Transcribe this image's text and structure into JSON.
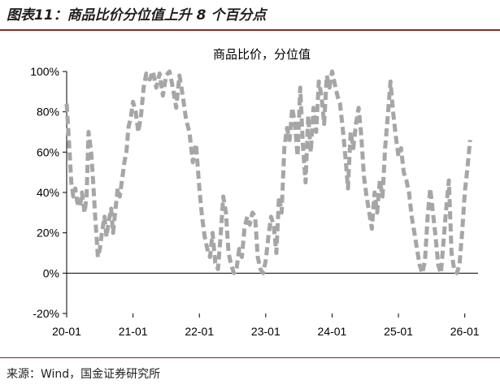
{
  "figure": {
    "title": "图表11：商品比价分位值上升 8 个百分点",
    "source": "来源：Wind，国金证券研究所"
  },
  "chart_data": {
    "type": "line",
    "title": "商品比价，分位值",
    "xlabel": "",
    "ylabel": "",
    "x_tick_labels": [
      "20-01",
      "21-01",
      "22-01",
      "23-01",
      "24-01",
      "25-01",
      "26-01"
    ],
    "y_tick_labels": [
      "-20%",
      "0%",
      "20%",
      "40%",
      "60%",
      "80%",
      "100%"
    ],
    "ylim": [
      -20,
      100
    ],
    "xlim": [
      2020.0,
      2026.2
    ],
    "grid": false,
    "legend": "none",
    "line_style": "dashed",
    "line_color": "#a6a6a6",
    "series": [
      {
        "x": [
          2020.0,
          2020.04,
          2020.07,
          2020.1,
          2020.13,
          2020.16,
          2020.2,
          2020.23,
          2020.27,
          2020.3,
          2020.33,
          2020.37,
          2020.4,
          2020.43,
          2020.47,
          2020.5,
          2020.53,
          2020.57,
          2020.6,
          2020.63,
          2020.67,
          2020.7,
          2020.73,
          2020.77,
          2020.8,
          2020.83,
          2020.87,
          2020.9,
          2020.93,
          2020.97,
          2021.0,
          2021.04,
          2021.08,
          2021.12,
          2021.16,
          2021.2,
          2021.25,
          2021.3,
          2021.35,
          2021.4,
          2021.45,
          2021.5,
          2021.55,
          2021.6,
          2021.65,
          2021.7,
          2021.75,
          2021.8,
          2021.85,
          2021.9,
          2021.95,
          2022.0,
          2022.04,
          2022.08,
          2022.12,
          2022.16,
          2022.2,
          2022.24,
          2022.28,
          2022.32,
          2022.36,
          2022.4,
          2022.44,
          2022.48,
          2022.52,
          2022.56,
          2022.6,
          2022.64,
          2022.68,
          2022.72,
          2022.76,
          2022.8,
          2022.84,
          2022.88,
          2022.92,
          2022.96,
          2023.0,
          2023.04,
          2023.08,
          2023.12,
          2023.16,
          2023.2,
          2023.24,
          2023.28,
          2023.32,
          2023.36,
          2023.4,
          2023.44,
          2023.48,
          2023.52,
          2023.56,
          2023.6,
          2023.64,
          2023.68,
          2023.72,
          2023.76,
          2023.8,
          2023.84,
          2023.88,
          2023.92,
          2023.96,
          2024.0,
          2024.04,
          2024.08,
          2024.12,
          2024.16,
          2024.2,
          2024.24,
          2024.28,
          2024.32,
          2024.36,
          2024.4,
          2024.44,
          2024.48,
          2024.52,
          2024.56,
          2024.6,
          2024.64,
          2024.68,
          2024.72,
          2024.76,
          2024.8,
          2024.84,
          2024.88,
          2024.92,
          2024.96,
          2025.0,
          2025.04,
          2025.08,
          2025.12,
          2025.16,
          2025.2,
          2025.24,
          2025.28,
          2025.32,
          2025.36,
          2025.4,
          2025.44,
          2025.48,
          2025.52,
          2025.56,
          2025.6,
          2025.64,
          2025.68,
          2025.72,
          2025.76,
          2025.8,
          2025.84,
          2025.88,
          2025.92,
          2025.96,
          2026.0,
          2026.04,
          2026.08
        ],
        "values": [
          84,
          62,
          45,
          38,
          42,
          35,
          33,
          40,
          30,
          38,
          70,
          60,
          45,
          28,
          8,
          12,
          20,
          28,
          18,
          25,
          32,
          20,
          30,
          42,
          38,
          45,
          55,
          60,
          72,
          78,
          85,
          80,
          70,
          78,
          92,
          99,
          96,
          100,
          92,
          99,
          88,
          98,
          100,
          92,
          82,
          98,
          88,
          76,
          70,
          55,
          64,
          42,
          28,
          18,
          12,
          8,
          20,
          5,
          2,
          18,
          38,
          30,
          10,
          4,
          0,
          2,
          12,
          8,
          22,
          28,
          24,
          30,
          28,
          8,
          2,
          0,
          6,
          18,
          28,
          24,
          10,
          38,
          30,
          62,
          72,
          66,
          82,
          74,
          58,
          92,
          64,
          45,
          78,
          60,
          82,
          70,
          95,
          88,
          74,
          98,
          92,
          100,
          94,
          88,
          84,
          72,
          58,
          42,
          70,
          62,
          74,
          82,
          68,
          48,
          38,
          30,
          22,
          40,
          30,
          46,
          38,
          62,
          78,
          95,
          80,
          68,
          58,
          62,
          50,
          46,
          40,
          28,
          20,
          12,
          4,
          0,
          6,
          28,
          42,
          30,
          18,
          4,
          0,
          16,
          32,
          46,
          10,
          2,
          0,
          4,
          20,
          40,
          52,
          66
        ]
      }
    ]
  }
}
